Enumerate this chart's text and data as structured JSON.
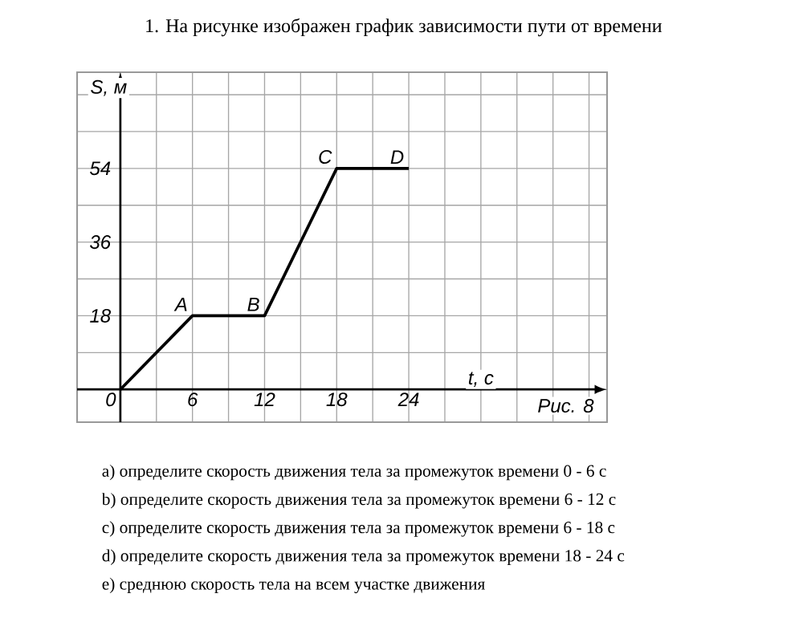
{
  "chart_data": {
    "type": "line",
    "title": "1.  На рисунке изображен график зависимости пути от времени",
    "xlabel": "t, с",
    "ylabel": "S, м",
    "x": [
      0,
      6,
      12,
      18,
      24
    ],
    "series": [
      {
        "color": "#000000",
        "values": [
          0,
          18,
          18,
          54,
          54
        ]
      }
    ],
    "xlim": [
      -3.6,
      40.5
    ],
    "ylim": [
      -8,
      77.5
    ],
    "xticks": [
      0,
      {
        "value": 3,
        "label": null
      },
      6,
      {
        "value": 9,
        "label": null
      },
      12,
      {
        "value": 15,
        "label": null
      },
      18,
      {
        "value": 21,
        "label": null
      },
      24,
      {
        "value": 27,
        "label": null
      },
      {
        "value": 30,
        "label": null
      },
      {
        "value": 33,
        "label": null
      },
      {
        "value": 36,
        "label": null
      },
      {
        "value": 39,
        "label": null
      }
    ],
    "yticks": [
      {
        "value": 0,
        "label": null
      },
      {
        "value": 9,
        "label": null
      },
      18,
      {
        "value": 27,
        "label": null
      },
      36,
      {
        "value": 45,
        "label": null
      },
      54,
      {
        "value": 63,
        "label": null
      },
      {
        "value": 72,
        "label": null
      }
    ],
    "grid": true,
    "marker": "none",
    "line_style": "solid",
    "annotations": [
      {
        "text": "A",
        "x": 6,
        "y": 18
      },
      {
        "text": "B",
        "x": 12,
        "y": 18
      },
      {
        "text": "C",
        "x": 18,
        "y": 54
      },
      {
        "text": "D",
        "x": 24,
        "y": 54
      },
      "Рис. 8",
      "a) определите скорость движения тела за промежуток времени 0 - 6 с",
      "b) определите скорость движения тела за промежуток времени 6 - 12 с",
      "c) определите скорость движения тела за промежуток времени 6 - 18 с",
      "d) определите скорость движения тела за промежуток времени 18 - 24 с",
      "e) среднюю скорость тела на всем участке движения"
    ]
  }
}
